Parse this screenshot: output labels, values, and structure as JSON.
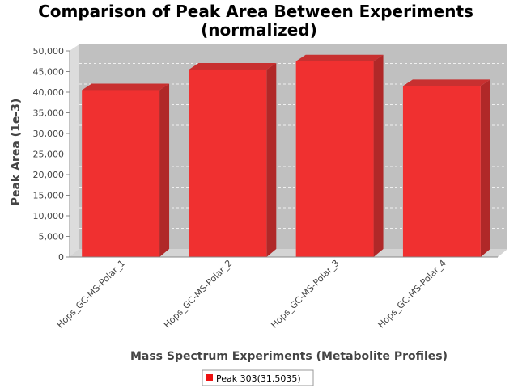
{
  "chart_data": {
    "type": "bar",
    "title": "Comparison of Peak Area Between Experiments",
    "subtitle": "(normalized)",
    "xlabel": "Mass Spectrum Experiments (Metabolite Profiles)",
    "ylabel": "Peak Area (1e-3)",
    "categories": [
      "Hops_GC-MS-Polar_1",
      "Hops_GC-MS-Polar_2",
      "Hops_GC-MS-Polar_3",
      "Hops_GC-MS-Polar_4"
    ],
    "series": [
      {
        "name": "Peak 303(31.5035)",
        "values": [
          40500,
          45500,
          47500,
          41500
        ],
        "color": "#f03030"
      }
    ],
    "ylim": [
      0,
      50000
    ],
    "yticks": [
      0,
      5000,
      10000,
      15000,
      20000,
      25000,
      30000,
      35000,
      40000,
      45000,
      50000
    ],
    "ytick_labels": [
      "0",
      "5,000",
      "10,000",
      "15,000",
      "20,000",
      "25,000",
      "30,000",
      "35,000",
      "40,000",
      "45,000",
      "50,000"
    ],
    "grid": true,
    "legend_position": "bottom",
    "plot_background": "#c0c0c0"
  }
}
